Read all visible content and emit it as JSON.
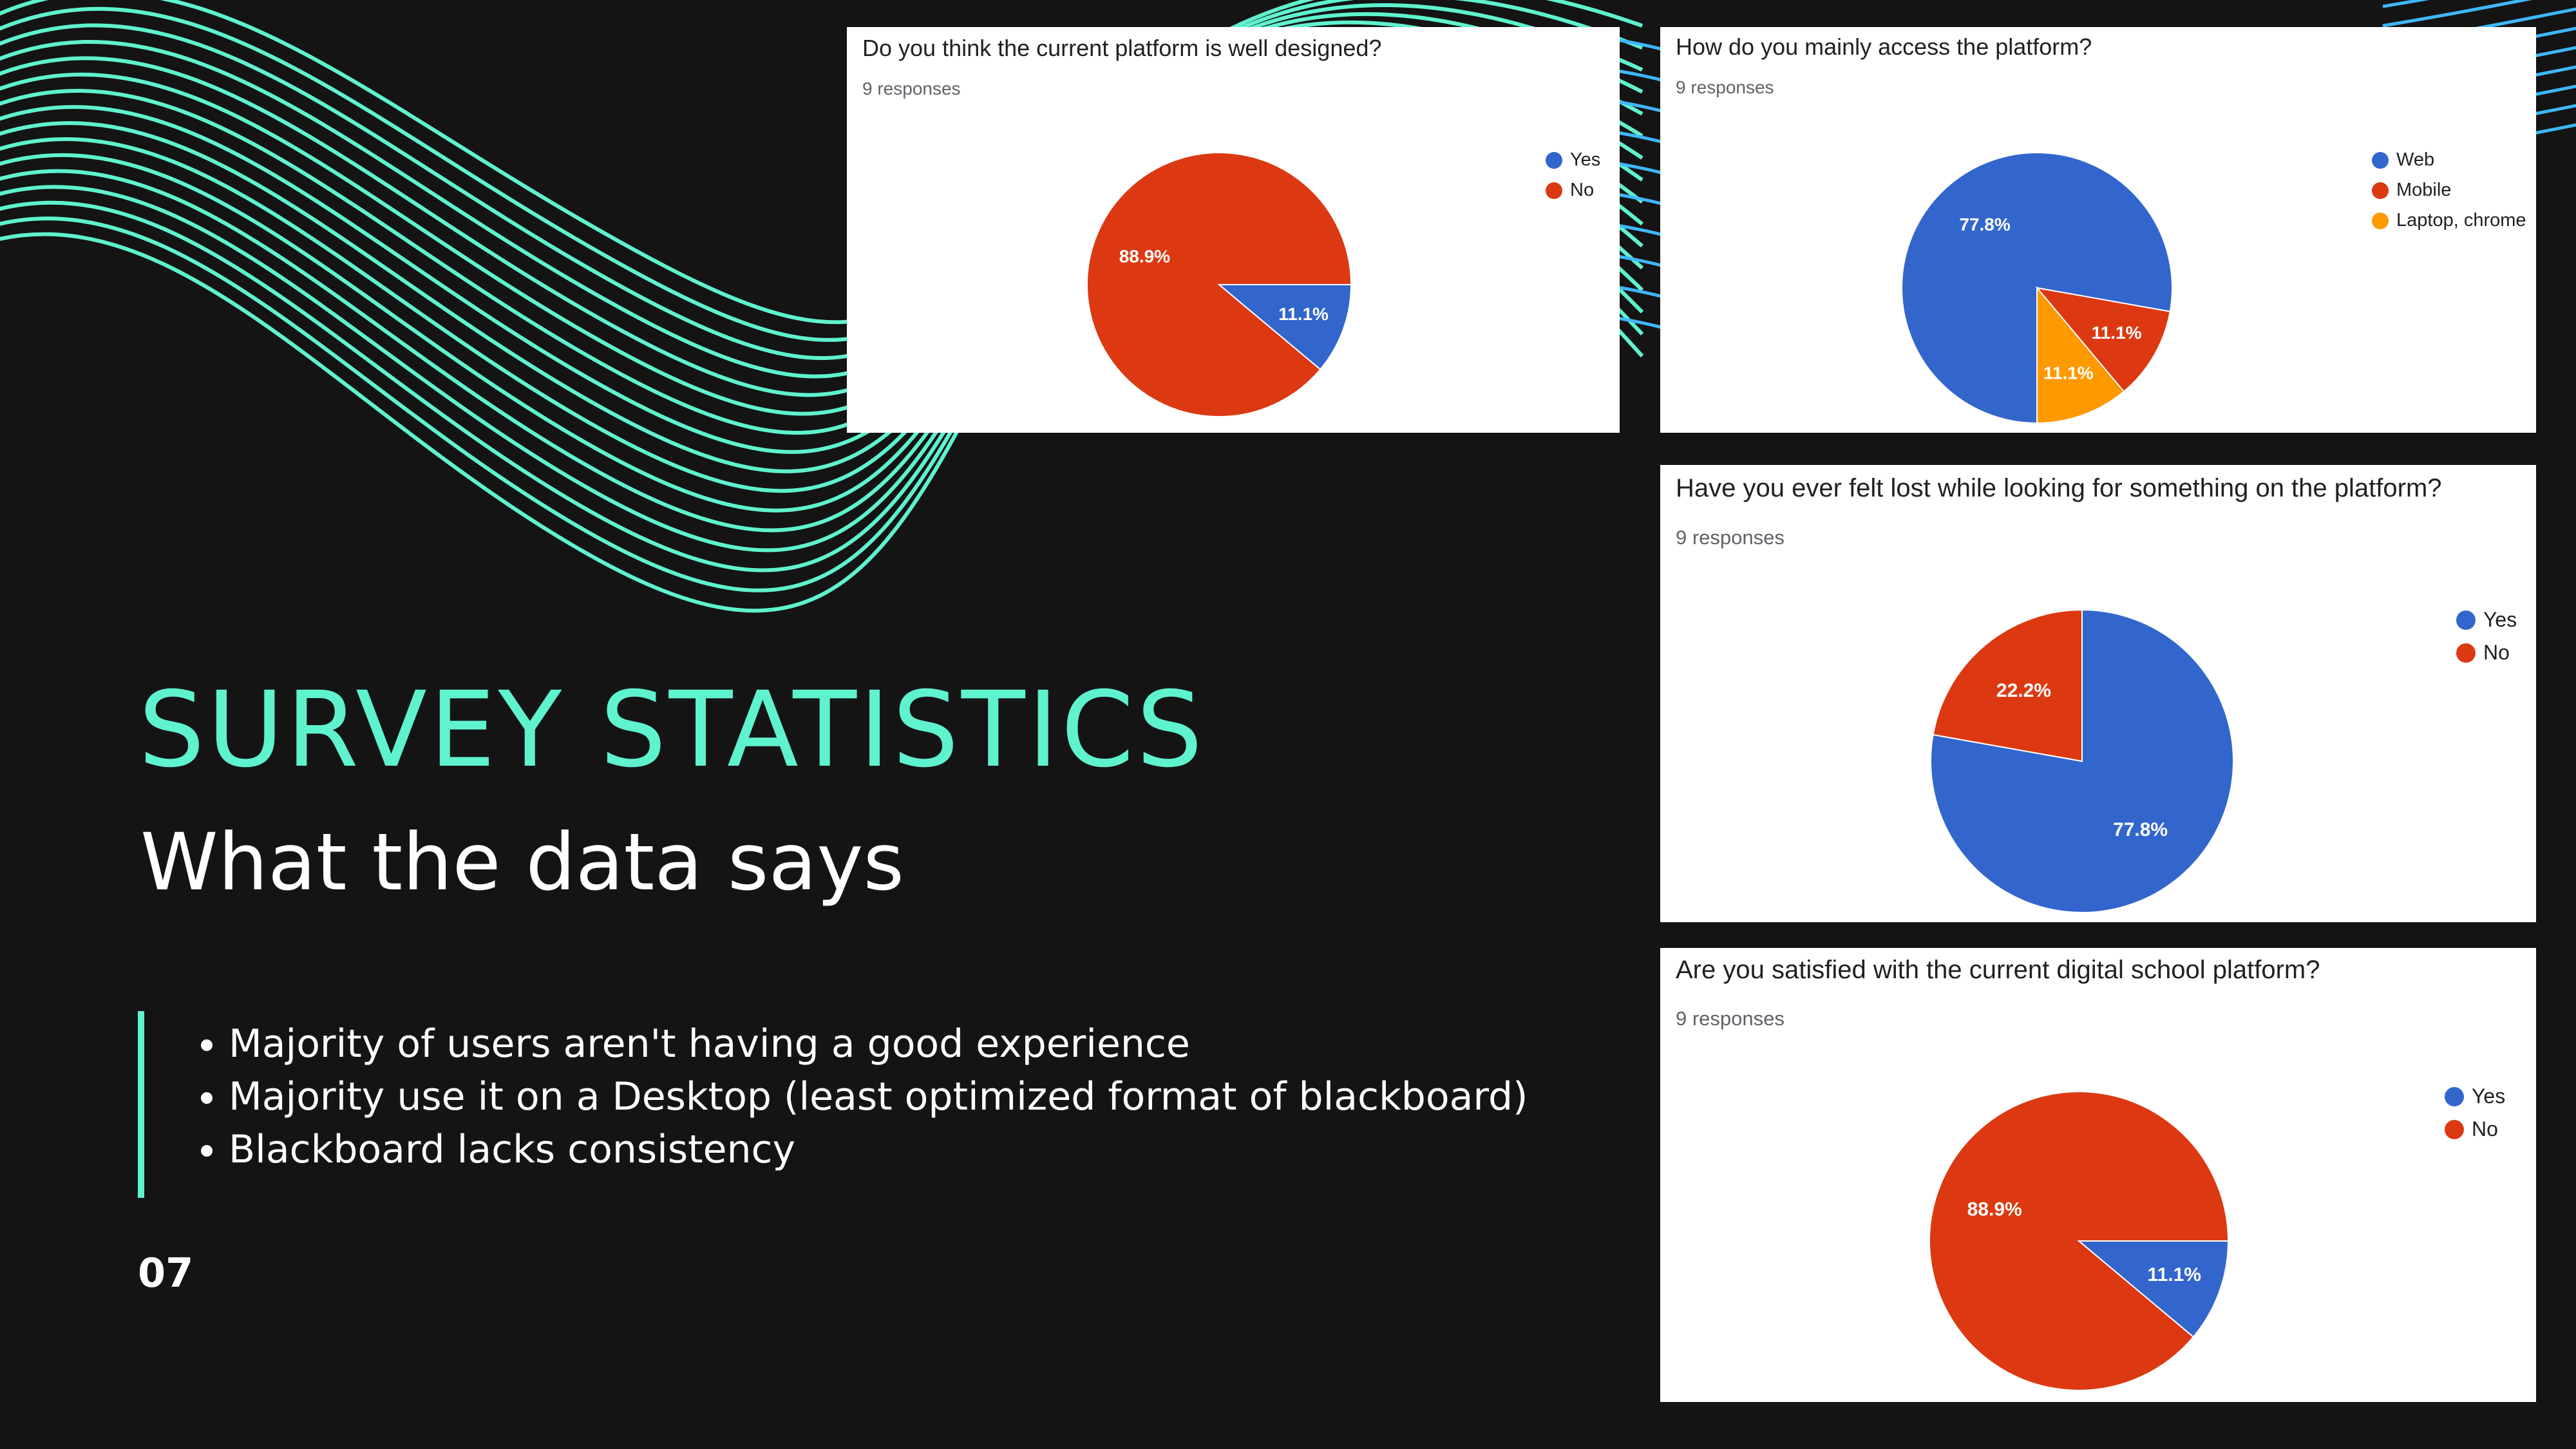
{
  "slide": {
    "title": "SURVEY STATISTICS",
    "subtitle": "What the data says",
    "bullets": [
      "Majority of users aren't having a good experience",
      "Majority use it on a Desktop (least optimized format of blackboard)",
      "Blackboard lacks consistency"
    ],
    "page_number": "07",
    "colors": {
      "accent": "#5ff2cf",
      "background": "#141414",
      "text": "#ffffff"
    }
  },
  "chart_data": [
    {
      "type": "pie",
      "title": "Do you think the current platform is well designed?",
      "subtitle": "9 responses",
      "categories": [
        "Yes",
        "No"
      ],
      "values": [
        11.1,
        88.9
      ],
      "labels": [
        "11.1%",
        "88.9%"
      ],
      "colors": [
        "#3366cc",
        "#dc3912"
      ],
      "legend": "right"
    },
    {
      "type": "pie",
      "title": "How do you mainly access the platform?",
      "subtitle": "9 responses",
      "categories": [
        "Web",
        "Mobile",
        "Laptop, chrome"
      ],
      "values": [
        77.8,
        11.1,
        11.1
      ],
      "labels": [
        "77.8%",
        "11.1%",
        "11.1%"
      ],
      "colors": [
        "#3366cc",
        "#dc3912",
        "#ff9900"
      ],
      "legend": "right"
    },
    {
      "type": "pie",
      "title": "Have you ever felt lost while looking for something on the platform?",
      "subtitle": "9 responses",
      "categories": [
        "Yes",
        "No"
      ],
      "values": [
        77.8,
        22.2
      ],
      "labels": [
        "77.8%",
        "22.2%"
      ],
      "colors": [
        "#3366cc",
        "#dc3912"
      ],
      "legend": "right"
    },
    {
      "type": "pie",
      "title": "Are you satisfied with the current digital school platform?",
      "subtitle": "9 responses",
      "categories": [
        "Yes",
        "No"
      ],
      "values": [
        11.1,
        88.9
      ],
      "labels": [
        "11.1%",
        "88.9%"
      ],
      "colors": [
        "#3366cc",
        "#dc3912"
      ],
      "legend": "right"
    }
  ]
}
